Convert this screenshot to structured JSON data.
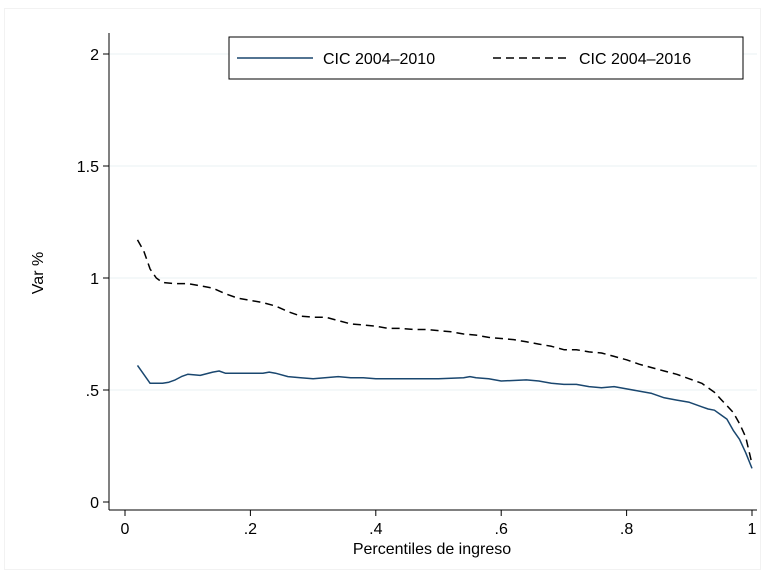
{
  "chart_data": {
    "type": "line",
    "xlabel": "Percentiles de ingreso",
    "ylabel": "Var %",
    "xlim": [
      0,
      1
    ],
    "ylim": [
      0,
      2
    ],
    "x_ticks": [
      "0",
      ".2",
      ".4",
      ".6",
      ".8",
      "1"
    ],
    "x_tick_values": [
      0,
      0.2,
      0.4,
      0.6,
      0.8,
      1.0
    ],
    "y_ticks": [
      "0",
      ".5",
      "1",
      "1.5",
      "2"
    ],
    "y_tick_values": [
      0,
      0.5,
      1.0,
      1.5,
      2.0
    ],
    "grid": "horizontal",
    "legend_position": "top",
    "series": [
      {
        "name": "CIC 2004–2010",
        "color": "#1a476f",
        "style": "solid",
        "x": [
          0.02,
          0.04,
          0.06,
          0.07,
          0.08,
          0.09,
          0.1,
          0.12,
          0.14,
          0.15,
          0.16,
          0.18,
          0.2,
          0.22,
          0.23,
          0.24,
          0.26,
          0.28,
          0.3,
          0.34,
          0.36,
          0.38,
          0.4,
          0.42,
          0.44,
          0.46,
          0.48,
          0.5,
          0.54,
          0.55,
          0.56,
          0.58,
          0.6,
          0.64,
          0.66,
          0.68,
          0.7,
          0.72,
          0.74,
          0.76,
          0.78,
          0.8,
          0.82,
          0.84,
          0.86,
          0.88,
          0.9,
          0.92,
          0.93,
          0.94,
          0.95,
          0.96,
          0.97,
          0.98,
          0.99,
          1.0
        ],
        "y": [
          0.61,
          0.53,
          0.53,
          0.535,
          0.545,
          0.56,
          0.57,
          0.565,
          0.58,
          0.585,
          0.575,
          0.575,
          0.575,
          0.575,
          0.58,
          0.575,
          0.56,
          0.555,
          0.55,
          0.56,
          0.555,
          0.555,
          0.55,
          0.55,
          0.55,
          0.55,
          0.55,
          0.55,
          0.555,
          0.56,
          0.555,
          0.55,
          0.54,
          0.545,
          0.54,
          0.53,
          0.525,
          0.525,
          0.515,
          0.51,
          0.515,
          0.505,
          0.495,
          0.485,
          0.465,
          0.455,
          0.445,
          0.425,
          0.415,
          0.41,
          0.39,
          0.37,
          0.32,
          0.28,
          0.22,
          0.15
        ]
      },
      {
        "name": "CIC 2004–2016",
        "color": "#000000",
        "style": "dashed",
        "x": [
          0.02,
          0.03,
          0.04,
          0.05,
          0.06,
          0.08,
          0.1,
          0.12,
          0.14,
          0.16,
          0.18,
          0.2,
          0.22,
          0.24,
          0.26,
          0.28,
          0.3,
          0.32,
          0.34,
          0.36,
          0.38,
          0.4,
          0.42,
          0.44,
          0.46,
          0.48,
          0.5,
          0.52,
          0.54,
          0.56,
          0.58,
          0.6,
          0.62,
          0.64,
          0.66,
          0.68,
          0.7,
          0.72,
          0.74,
          0.76,
          0.78,
          0.8,
          0.82,
          0.84,
          0.86,
          0.88,
          0.9,
          0.92,
          0.94,
          0.95,
          0.96,
          0.97,
          0.98,
          0.99,
          1.0
        ],
        "y": [
          1.17,
          1.12,
          1.04,
          1.0,
          0.98,
          0.975,
          0.975,
          0.965,
          0.955,
          0.93,
          0.91,
          0.9,
          0.89,
          0.875,
          0.85,
          0.83,
          0.825,
          0.825,
          0.81,
          0.795,
          0.79,
          0.785,
          0.775,
          0.775,
          0.77,
          0.77,
          0.765,
          0.76,
          0.75,
          0.745,
          0.735,
          0.73,
          0.725,
          0.715,
          0.705,
          0.695,
          0.68,
          0.68,
          0.67,
          0.665,
          0.65,
          0.635,
          0.615,
          0.6,
          0.585,
          0.57,
          0.55,
          0.53,
          0.49,
          0.46,
          0.43,
          0.4,
          0.35,
          0.29,
          0.17
        ]
      }
    ]
  }
}
